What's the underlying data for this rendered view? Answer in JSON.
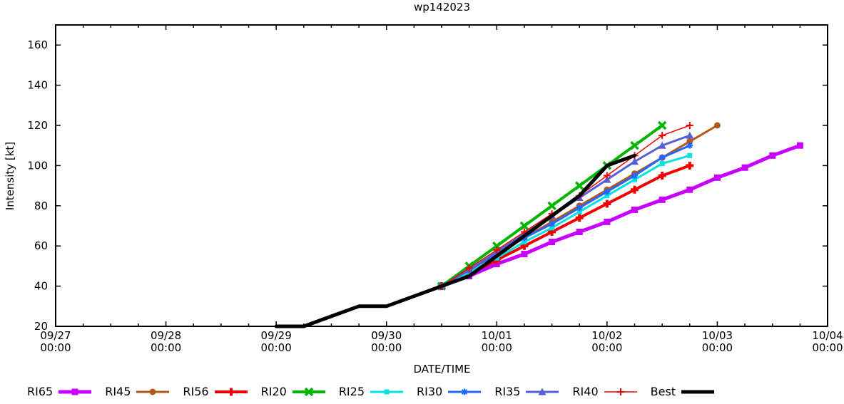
{
  "title": "wp142023",
  "axes": {
    "x_label": "DATE/TIME",
    "y_label": "Intensity [kt]",
    "x_ticks": [
      {
        "date": "09/27",
        "time": "00:00"
      },
      {
        "date": "09/28",
        "time": "00:00"
      },
      {
        "date": "09/29",
        "time": "00:00"
      },
      {
        "date": "09/30",
        "time": "00:00"
      },
      {
        "date": "10/01",
        "time": "00:00"
      },
      {
        "date": "10/02",
        "time": "00:00"
      },
      {
        "date": "10/03",
        "time": "00:00"
      },
      {
        "date": "10/04",
        "time": "00:00"
      }
    ],
    "y_ticks": [
      20,
      40,
      60,
      80,
      100,
      120,
      140,
      160
    ]
  },
  "chart_data": {
    "type": "line",
    "title": "wp142023",
    "xlabel": "DATE/TIME",
    "ylabel": "Intensity [kt]",
    "x_hours_range": [
      0,
      168
    ],
    "time_base": "hours since 09/27 00:00",
    "ylim": [
      20,
      170
    ],
    "grid": false,
    "legend_position": "bottom",
    "x_axis": {
      "major_tick_hours": 24,
      "minor_tick_hours": 6
    },
    "series": [
      {
        "name": "RI65",
        "color": "#c800ff",
        "marker": "square",
        "line_width": 5,
        "marker_size": 9,
        "start": "09/30 12:00",
        "start_hour": 84,
        "step_hours": 6,
        "values": [
          40,
          45,
          51,
          56,
          62,
          67,
          72,
          78,
          83,
          88,
          94,
          99,
          105,
          110
        ]
      },
      {
        "name": "RI45",
        "color": "#b4571b",
        "marker": "circle",
        "line_width": 3,
        "marker_size": 9,
        "start": "09/30 12:00",
        "start_hour": 84,
        "step_hours": 6,
        "values": [
          40,
          48,
          56,
          64,
          72,
          80,
          88,
          96,
          104,
          112,
          120
        ]
      },
      {
        "name": "RI56",
        "color": "#ee0000",
        "marker": "plus",
        "line_width": 4,
        "marker_size": 11,
        "start": "09/30 12:00",
        "start_hour": 84,
        "step_hours": 6,
        "values": [
          40,
          46,
          53,
          60,
          67,
          74,
          81,
          88,
          95,
          100
        ]
      },
      {
        "name": "RI20",
        "color": "#00b400",
        "marker": "x",
        "line_width": 4,
        "marker_size": 10,
        "start": "09/30 12:00",
        "start_hour": 84,
        "step_hours": 6,
        "values": [
          40,
          50,
          60,
          70,
          80,
          90,
          100,
          110,
          120
        ]
      },
      {
        "name": "RI25",
        "color": "#00e1e1",
        "marker": "square",
        "line_width": 3,
        "marker_size": 7,
        "start": "09/30 12:00",
        "start_hour": 84,
        "step_hours": 6,
        "values": [
          40,
          47,
          54,
          62,
          69,
          77,
          85,
          93,
          101,
          105
        ]
      },
      {
        "name": "RI30",
        "color": "#2268ff",
        "marker": "asterisk",
        "line_width": 3,
        "marker_size": 9,
        "start": "09/30 12:00",
        "start_hour": 84,
        "step_hours": 6,
        "values": [
          40,
          48,
          56,
          64,
          71,
          79,
          87,
          95,
          104,
          110
        ]
      },
      {
        "name": "RI35",
        "color": "#5560d8",
        "marker": "triangle",
        "line_width": 3,
        "marker_size": 9,
        "start": "09/30 12:00",
        "start_hour": 84,
        "step_hours": 6,
        "values": [
          40,
          48,
          57,
          66,
          75,
          84,
          93,
          102,
          110,
          115
        ]
      },
      {
        "name": "RI40",
        "color": "#ee0000",
        "marker": "plus",
        "line_width": 1.5,
        "marker_size": 10,
        "start": "09/30 12:00",
        "start_hour": 84,
        "step_hours": 6,
        "values": [
          40,
          49,
          58,
          67,
          76,
          85,
          95,
          105,
          115,
          120
        ]
      },
      {
        "name": "Best",
        "color": "#000000",
        "marker": "none",
        "line_width": 5,
        "marker_size": 0,
        "start": "09/29 00:00",
        "start_hour": 48,
        "step_hours": 6,
        "values": [
          20,
          20,
          25,
          30,
          30,
          35,
          40,
          45,
          55,
          65,
          75,
          85,
          100,
          105
        ]
      }
    ]
  }
}
